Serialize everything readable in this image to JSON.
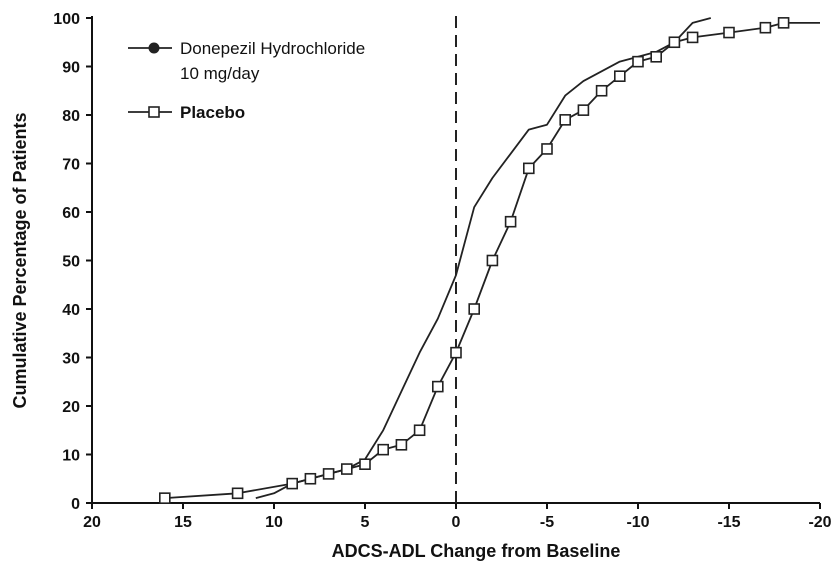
{
  "chart_data": {
    "type": "line",
    "title": "",
    "xlabel": "ADCS-ADL Change from Baseline",
    "ylabel": "Cumulative Percentage of Patients",
    "xlim": [
      20,
      -20
    ],
    "ylim": [
      0,
      100
    ],
    "x_reversed": true,
    "grid": false,
    "legend_position": "top-left",
    "x_ticks": [
      20,
      15,
      10,
      5,
      0,
      -5,
      -10,
      -15,
      -20
    ],
    "x_tick_labels": [
      "20",
      "15",
      "10",
      "5",
      "0",
      "-5",
      "-10",
      "-15",
      "-20"
    ],
    "y_ticks": [
      0,
      10,
      20,
      30,
      40,
      50,
      60,
      70,
      80,
      90,
      100
    ],
    "y_tick_labels": [
      "0",
      "10",
      "20",
      "30",
      "40",
      "50",
      "60",
      "70",
      "80",
      "90",
      "100"
    ],
    "reference_line": {
      "x": 0,
      "style": "dashed"
    },
    "series": [
      {
        "name": "Donepezil Hydrochloride 10 mg/day",
        "legend_lines": [
          "Donepezil Hydrochloride",
          "10 mg/day"
        ],
        "marker": "filled-circle",
        "show_markers": false,
        "color": "#222222",
        "x": [
          11,
          10,
          9,
          8,
          7,
          6,
          5,
          4,
          3,
          2,
          1,
          0,
          -1,
          -2,
          -3,
          -4,
          -5,
          -6,
          -7,
          -8,
          -9,
          -10,
          -11,
          -12,
          -13,
          -14
        ],
        "y": [
          1,
          2,
          4,
          5,
          6,
          7,
          9,
          15,
          23,
          31,
          38,
          47,
          61,
          67,
          72,
          77,
          78,
          84,
          87,
          89,
          91,
          92,
          93,
          95,
          99,
          100
        ]
      },
      {
        "name": "Placebo",
        "legend_lines": [
          "Placebo"
        ],
        "marker": "open-square",
        "show_markers": true,
        "color": "#222222",
        "x": [
          16,
          12,
          9,
          8,
          7,
          6,
          5,
          4,
          3,
          2,
          1,
          0,
          -1,
          -2,
          -3,
          -4,
          -5,
          -6,
          -7,
          -8,
          -9,
          -10,
          -11,
          -12,
          -13,
          -15,
          -17,
          -18,
          -20
        ],
        "y": [
          1,
          2,
          4,
          5,
          6,
          7,
          8,
          11,
          12,
          15,
          24,
          31,
          40,
          50,
          58,
          69,
          73,
          79,
          81,
          85,
          88,
          91,
          92,
          95,
          96,
          97,
          98,
          99,
          99
        ],
        "marker_mask": [
          true,
          true,
          true,
          true,
          true,
          true,
          true,
          true,
          true,
          true,
          true,
          true,
          true,
          true,
          true,
          true,
          true,
          true,
          true,
          true,
          true,
          true,
          true,
          true,
          true,
          true,
          true,
          true,
          false
        ]
      }
    ]
  }
}
